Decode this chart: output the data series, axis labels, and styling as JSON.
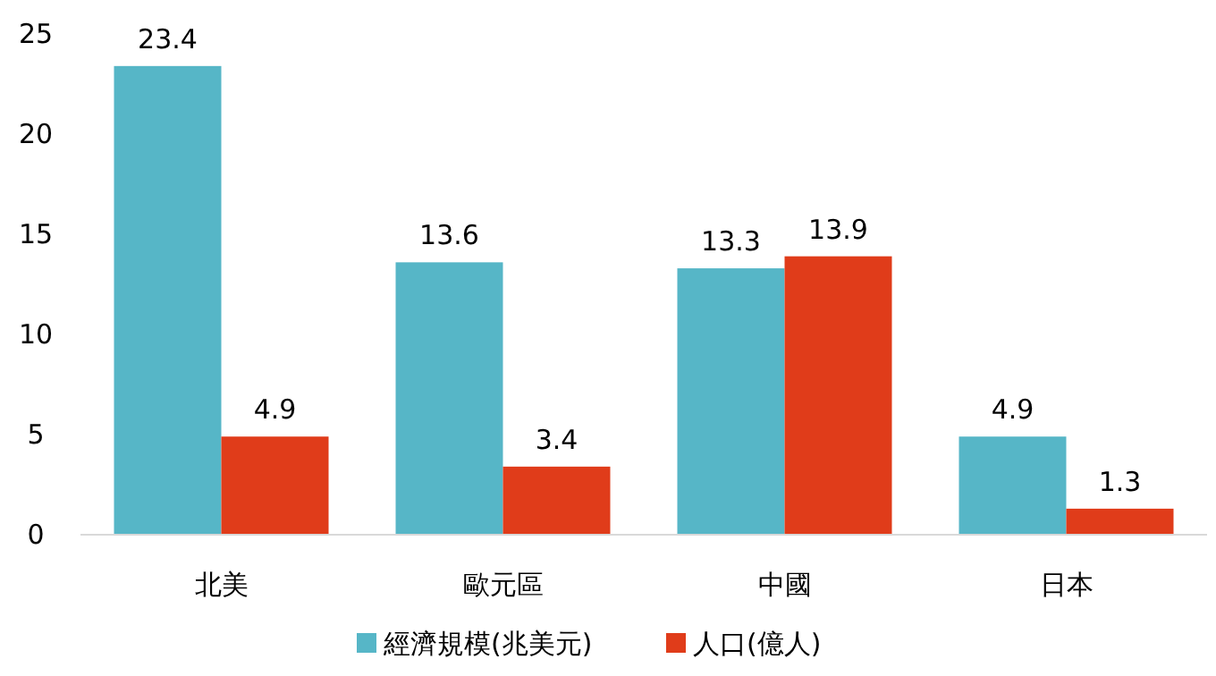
{
  "chart_data": {
    "type": "bar",
    "categories": [
      "北美",
      "歐元區",
      "中國",
      "日本"
    ],
    "series": [
      {
        "name": "經濟規模(兆美元)",
        "color": "#56b6c7",
        "values": [
          23.4,
          13.6,
          13.3,
          4.9
        ]
      },
      {
        "name": "人口(億人)",
        "color": "#e03c1a",
        "values": [
          4.9,
          3.4,
          13.9,
          1.3
        ]
      }
    ],
    "ylim": [
      0,
      25
    ],
    "yticks": [
      0,
      5,
      10,
      15,
      20,
      25
    ],
    "data_labels": true,
    "legend": "bottom",
    "grid": false
  }
}
